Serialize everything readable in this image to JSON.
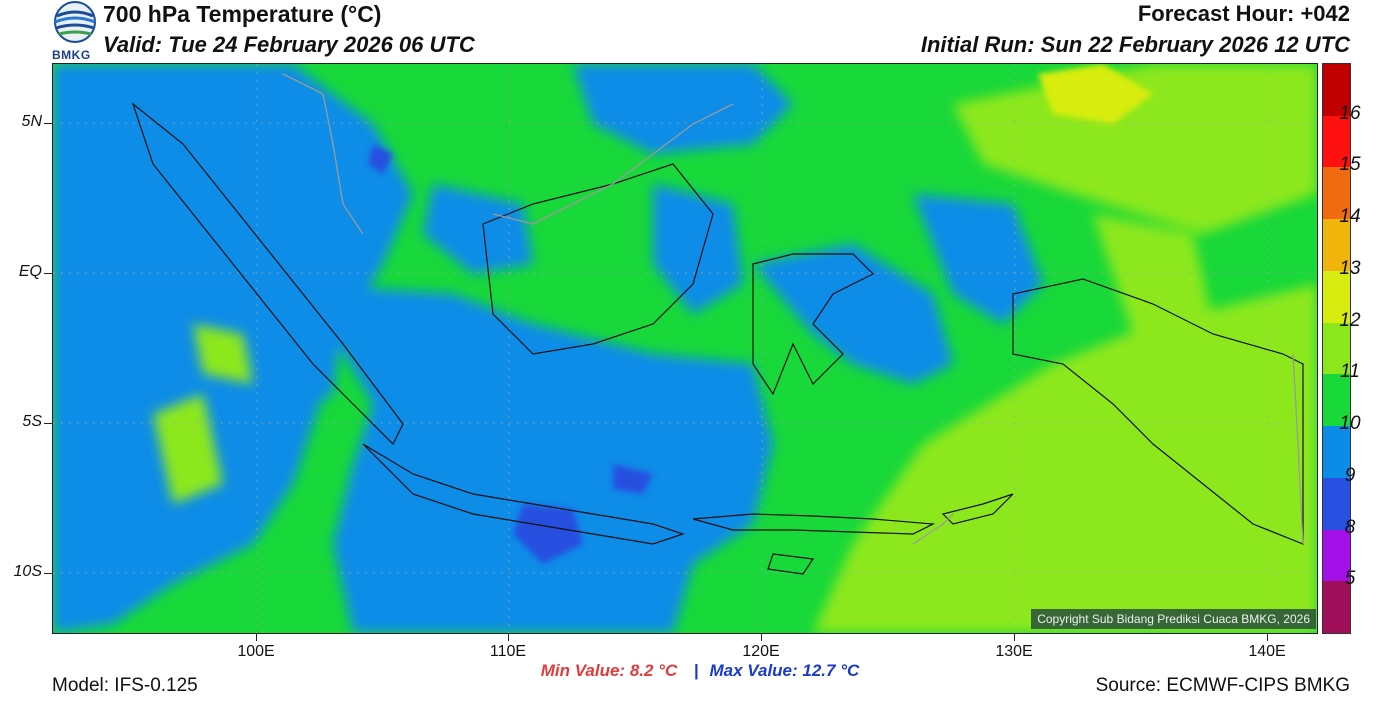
{
  "header": {
    "title": "700 hPa Temperature (°C)",
    "valid": "Valid: Tue 24 February 2026 06 UTC",
    "forecast_hour": "Forecast Hour: +042",
    "initial_run": "Initial Run: Sun 22 February 2026 12 UTC",
    "logo_text": "BMKG"
  },
  "map": {
    "lat_labels": [
      "5N",
      "EQ",
      "5S",
      "10S"
    ],
    "lon_labels": [
      "100E",
      "110E",
      "120E",
      "130E",
      "140E"
    ],
    "extent": {
      "lon_min": 92,
      "lon_max": 142,
      "lat_min": -12,
      "lat_max": 7
    },
    "copyright": "Copyright Sub Bidang Prediksi Cuaca BMKG, 2026"
  },
  "colorbar": {
    "labels": [
      "16",
      "15",
      "14",
      "13",
      "12",
      "11",
      "10",
      "9",
      "8",
      "5"
    ],
    "colors": [
      "#c00000",
      "#ff1010",
      "#f06a10",
      "#f0b40a",
      "#d8ec10",
      "#8ce81c",
      "#18d83a",
      "#0c8ce8",
      "#2850e0",
      "#a410e8",
      "#a0105a"
    ]
  },
  "stats": {
    "min": "Min Value: 8.2 °C",
    "separator": "|",
    "max": "Max Value: 12.7 °C"
  },
  "footer": {
    "model": "Model: IFS-0.125",
    "source": "Source: ECMWF-CIPS BMKG"
  }
}
